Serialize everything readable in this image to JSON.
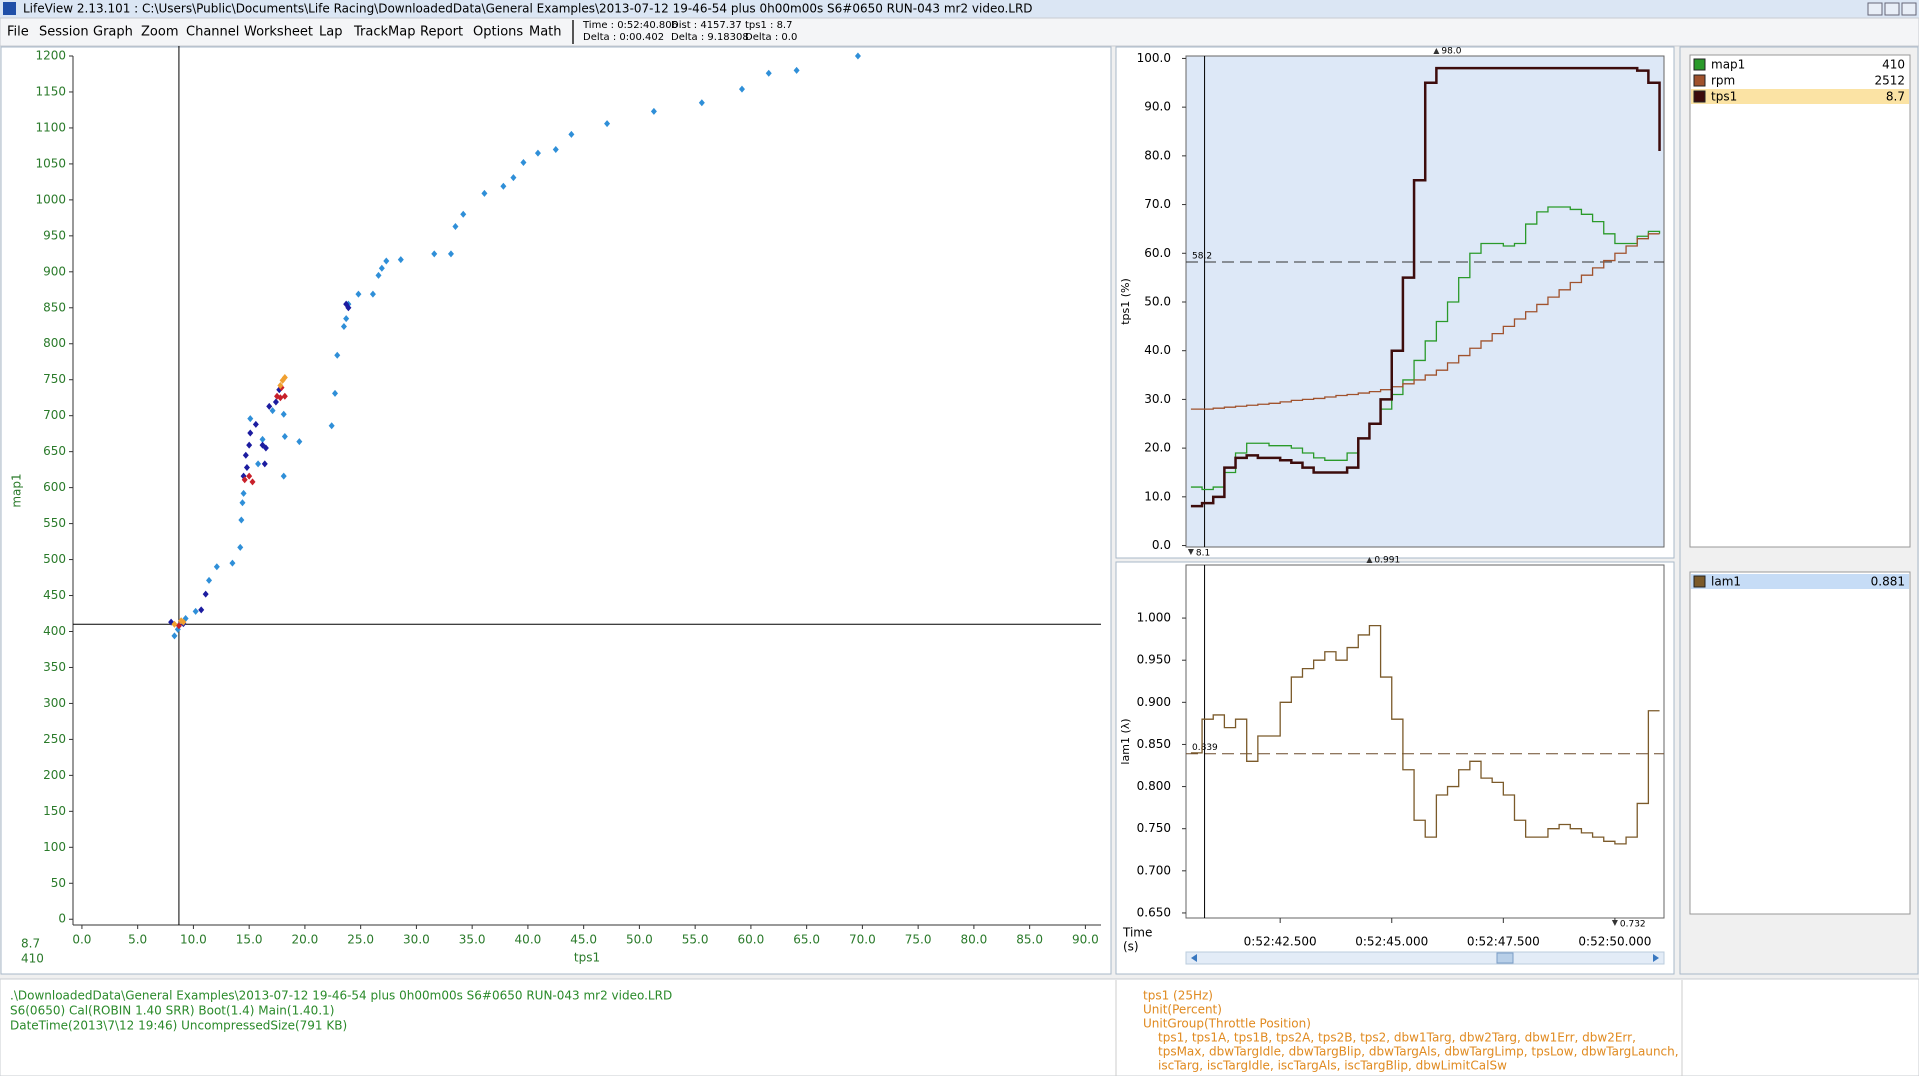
{
  "window": {
    "title": "LifeView 2.13.101  :  C:\\Users\\Public\\Documents\\Life Racing\\DownloadedData\\General Examples\\2013-07-12 19-46-54 plus 0h00m00s S6#0650 RUN-043 mr2 video.LRD"
  },
  "menu": [
    "File",
    "Session",
    "Graph",
    "Zoom",
    "Channel",
    "Worksheet",
    "Lap",
    "TrackMap",
    "Report",
    "Options",
    "Math"
  ],
  "status": [
    [
      "Time : 0:52:40.806",
      "Delta : 0:00.402"
    ],
    [
      "Dist : 4157.37",
      "Delta : 9.18308"
    ],
    [
      "tps1 : 8.7",
      "Delta : 0.0"
    ]
  ],
  "chart_data": [
    {
      "type": "scatter",
      "xlabel": "tps1",
      "ylabel": "map1",
      "xlim": [
        -0.8,
        91.4
      ],
      "ylim": [
        -8,
        1200
      ],
      "xticks": [
        {
          "value": 0,
          "label": "0.0"
        },
        {
          "value": 5,
          "label": "5.0"
        },
        {
          "value": 10,
          "label": "10.0"
        },
        {
          "value": 15,
          "label": "15.0"
        },
        {
          "value": 20,
          "label": "20.0"
        },
        {
          "value": 25,
          "label": "25.0"
        },
        {
          "value": 30,
          "label": "30.0"
        },
        {
          "value": 35,
          "label": "35.0"
        },
        {
          "value": 40,
          "label": "40.0"
        },
        {
          "value": 45,
          "label": "45.0"
        },
        {
          "value": 50,
          "label": "50.0"
        },
        {
          "value": 55,
          "label": "55.0"
        },
        {
          "value": 60,
          "label": "60.0"
        },
        {
          "value": 65,
          "label": "65.0"
        },
        {
          "value": 70,
          "label": "70.0"
        },
        {
          "value": 75,
          "label": "75.0"
        },
        {
          "value": 80,
          "label": "80.0"
        },
        {
          "value": 85,
          "label": "85.0"
        },
        {
          "value": 90,
          "label": "90.0"
        }
      ],
      "yticks": [
        0,
        50,
        100,
        150,
        200,
        250,
        300,
        350,
        400,
        450,
        500,
        550,
        600,
        650,
        700,
        750,
        800,
        850,
        900,
        950,
        1000,
        1050,
        1100,
        1150,
        1200
      ],
      "cursor": {
        "x": 8.7,
        "y": 410
      },
      "series": [
        {
          "color": "#2f8fd8",
          "x": [
            69.6,
            64.1,
            61.6,
            59.2,
            55.6,
            51.3,
            47.1,
            43.9,
            42.5,
            40.9,
            39.6,
            38.7,
            37.8,
            36.1,
            34.2,
            33.5,
            33.1,
            31.6,
            28.6,
            27.3,
            26.9,
            26.6,
            26.1,
            24.8,
            23.9,
            23.7,
            23.5,
            22.9,
            22.7,
            22.4,
            19.5,
            18.2,
            18.1,
            17.1,
            15.1,
            14.5,
            14.4,
            14.3,
            14.2,
            13.5,
            12.1,
            11.4,
            10.2,
            9.3,
            8.6,
            8.3,
            18.1,
            15.8,
            16.2
          ],
          "values": [
            1200,
            1180,
            1176,
            1154,
            1135,
            1123,
            1106,
            1091,
            1070,
            1065,
            1052,
            1031,
            1019,
            1009,
            980,
            963,
            925,
            925,
            917,
            915,
            905,
            895,
            869,
            869,
            855,
            835,
            824,
            784,
            731,
            686,
            664,
            671,
            616,
            707,
            696,
            592,
            579,
            555,
            517,
            495,
            490,
            471,
            428,
            418,
            403,
            394,
            702,
            633,
            667
          ]
        },
        {
          "color": "#1c1ca0",
          "x": [
            23.7,
            23.9,
            10.7,
            11.1,
            14.7,
            14.8,
            15.0,
            15.1,
            15.6,
            16.2,
            16.4,
            16.5,
            16.8,
            17.4,
            17.7,
            14.5,
            8.0,
            9.1
          ],
          "values": [
            855,
            850,
            430,
            452,
            645,
            628,
            659,
            676,
            688,
            659,
            633,
            655,
            713,
            719,
            736,
            616,
            413,
            411
          ]
        },
        {
          "color": "#c8202a",
          "x": [
            14.6,
            15.0,
            15.3,
            17.5,
            17.8,
            18.2,
            17.9,
            8.7
          ],
          "values": [
            611,
            616,
            608,
            727,
            725,
            727,
            739,
            408
          ]
        },
        {
          "color": "#f0a030",
          "x": [
            18.0,
            18.2,
            17.8,
            8.9,
            9.1,
            8.3
          ],
          "values": [
            749,
            753,
            742,
            415,
            413,
            410
          ]
        }
      ]
    },
    {
      "type": "line",
      "step": true,
      "ylabel": "tps1 (%)",
      "background": "#dde8f7",
      "x": [
        3160.5,
        3160.75,
        3161,
        3161.25,
        3161.5,
        3161.75,
        3162,
        3162.25,
        3162.5,
        3162.75,
        3163,
        3163.25,
        3163.5,
        3163.75,
        3164,
        3164.25,
        3164.5,
        3164.75,
        3165,
        3165.25,
        3165.5,
        3165.75,
        3166,
        3166.25,
        3166.5,
        3166.75,
        3167,
        3167.25,
        3167.5,
        3167.75,
        3168,
        3168.25,
        3168.5,
        3168.75,
        3169,
        3169.25,
        3169.5,
        3169.75,
        3170,
        3170.25,
        3170.5,
        3170.75,
        3171
      ],
      "xlim": [
        3160.39,
        3171.1
      ],
      "ylim": [
        -0.3,
        100.5
      ],
      "yticks": [
        {
          "value": 0,
          "label": "0.0"
        },
        {
          "value": 10,
          "label": "10.0"
        },
        {
          "value": 20,
          "label": "20.0"
        },
        {
          "value": 30,
          "label": "30.0"
        },
        {
          "value": 40,
          "label": "40.0"
        },
        {
          "value": 50,
          "label": "50.0"
        },
        {
          "value": 60,
          "label": "60.0"
        },
        {
          "value": 70,
          "label": "70.0"
        },
        {
          "value": 80,
          "label": "80.0"
        },
        {
          "value": 90,
          "label": "90.0"
        },
        {
          "value": 100,
          "label": "100.0"
        }
      ],
      "cursor_x": 3160.806,
      "refline": {
        "value": 58.2,
        "label": "58.2"
      },
      "max": {
        "x": 3166,
        "value": 98,
        "label": "98.0"
      },
      "min": {
        "x": 3160.5,
        "value": 8.1,
        "label": "8.1"
      },
      "series": [
        {
          "name": "map1",
          "color": "#2a9a2a",
          "current": 410,
          "values": [
            12,
            11.5,
            12,
            15,
            19,
            21,
            21,
            20.5,
            20.5,
            20,
            19,
            18,
            17.5,
            17.5,
            19,
            22,
            25,
            28,
            31,
            34,
            38,
            42,
            46,
            50,
            55,
            60,
            62,
            62,
            61.5,
            62,
            66,
            68.5,
            69.5,
            69.5,
            69,
            68,
            66.5,
            64,
            62,
            62,
            63.5,
            64.5,
            64
          ]
        },
        {
          "name": "rpm",
          "color": "#a0522d",
          "current": 2512,
          "values": [
            28,
            28,
            28.2,
            28.4,
            28.6,
            28.8,
            29,
            29.2,
            29.5,
            29.8,
            30,
            30.2,
            30.5,
            30.8,
            31,
            31.3,
            31.6,
            32,
            32.6,
            33.2,
            34,
            35,
            36,
            37.5,
            39,
            40.5,
            42,
            43.5,
            45,
            46.5,
            48,
            49.5,
            51,
            52.5,
            54,
            55.5,
            57,
            58.5,
            60,
            61.5,
            63,
            64,
            64
          ]
        },
        {
          "name": "tps1",
          "color": "#3d0c0c",
          "current": 8.7,
          "values": [
            8.1,
            8.7,
            10,
            16,
            18,
            18.5,
            18,
            18,
            17.5,
            17,
            16,
            15,
            15,
            15,
            16,
            22,
            25,
            30,
            40,
            55,
            75,
            95,
            98,
            98,
            98,
            98,
            98,
            98,
            98,
            98,
            98,
            98,
            98,
            98,
            98,
            98,
            98,
            98,
            98,
            98,
            97.5,
            95,
            81
          ]
        }
      ]
    },
    {
      "type": "line",
      "step": true,
      "ylabel": "lam1 (λ)",
      "xlabel": "Time",
      "xunit": "(s)",
      "x": [
        3160.5,
        3160.75,
        3161,
        3161.25,
        3161.5,
        3161.75,
        3162,
        3162.25,
        3162.5,
        3162.75,
        3163,
        3163.25,
        3163.5,
        3163.75,
        3164,
        3164.25,
        3164.5,
        3164.75,
        3165,
        3165.25,
        3165.5,
        3165.75,
        3166,
        3166.25,
        3166.5,
        3166.75,
        3167,
        3167.25,
        3167.5,
        3167.75,
        3168,
        3168.25,
        3168.5,
        3168.75,
        3169,
        3169.25,
        3169.5,
        3169.75,
        3170,
        3170.25,
        3170.5,
        3170.75,
        3171
      ],
      "xlim": [
        3160.39,
        3171.1
      ],
      "ylim": [
        0.644,
        1.063
      ],
      "xticks": [
        {
          "value": 3162.5,
          "label": "0:52:42.500"
        },
        {
          "value": 3165,
          "label": "0:52:45.000"
        },
        {
          "value": 3167.5,
          "label": "0:52:47.500"
        },
        {
          "value": 3170,
          "label": "0:52:50.000"
        }
      ],
      "yticks": [
        {
          "value": 0.65,
          "label": "0.650"
        },
        {
          "value": 0.7,
          "label": "0.700"
        },
        {
          "value": 0.75,
          "label": "0.750"
        },
        {
          "value": 0.8,
          "label": "0.800"
        },
        {
          "value": 0.85,
          "label": "0.850"
        },
        {
          "value": 0.9,
          "label": "0.900"
        },
        {
          "value": 0.95,
          "label": "0.950"
        },
        {
          "value": 1,
          "label": "1.000"
        }
      ],
      "cursor_x": 3160.806,
      "refline": {
        "value": 0.839,
        "label": "0.839"
      },
      "max": {
        "x": 3164.5,
        "value": 0.991,
        "label": "0.991"
      },
      "min": {
        "x": 3170,
        "value": 0.732,
        "label": "0.732"
      },
      "series": [
        {
          "name": "lam1",
          "color": "#7b5a2a",
          "current": 0.881,
          "values": [
            0.84,
            0.88,
            0.885,
            0.87,
            0.88,
            0.83,
            0.86,
            0.86,
            0.9,
            0.93,
            0.94,
            0.95,
            0.96,
            0.95,
            0.965,
            0.98,
            0.991,
            0.93,
            0.88,
            0.82,
            0.76,
            0.74,
            0.79,
            0.8,
            0.82,
            0.83,
            0.81,
            0.805,
            0.79,
            0.76,
            0.74,
            0.74,
            0.75,
            0.755,
            0.75,
            0.745,
            0.74,
            0.735,
            0.732,
            0.74,
            0.78,
            0.89,
            0.89
          ]
        }
      ]
    }
  ],
  "info": {
    "file": [
      ".\\DownloadedData\\General Examples\\2013-07-12 19-46-54 plus 0h00m00s S6#0650 RUN-043 mr2 video.LRD",
      "S6(0650) Cal(ROBIN 1.40 SRR) Boot(1.4) Main(1.40.1)",
      "DateTime(2013\\7\\12 19:46) UncompressedSize(791 KB)"
    ],
    "channel": [
      "tps1 (25Hz)",
      "Unit(Percent)",
      "UnitGroup(Throttle Position)",
      "tps1, tps1A, tps1B, tps2A, tps2B, tps2, dbw1Targ, dbw2Targ, dbw1Err, dbw2Err,",
      "tpsMax, dbwTargIdle, dbwTargBlip, dbwTargAls, dbwTargLimp, tpsLow, dbwTargLaunch,",
      "iscTarg, iscTargIdle, iscTargAls, iscTargBlip, dbwLimitCalSw"
    ]
  }
}
